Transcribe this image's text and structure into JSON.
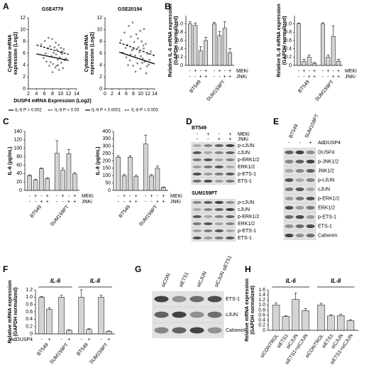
{
  "panel_labels": [
    "A",
    "B",
    "C",
    "D",
    "E",
    "F",
    "G",
    "H"
  ],
  "chart_data": [
    {
      "type": "scatter",
      "title": "GSE4779",
      "ylabel": [
        "Cytokine mRNA",
        "expression (Log2)"
      ],
      "xlabel": "DUSP4 mRNA Expression (Log2)",
      "xlim": [
        2,
        14
      ],
      "xticks": [
        2,
        4,
        6,
        8,
        10,
        12,
        14
      ],
      "ylim": [
        0,
        12
      ],
      "yticks": [
        0,
        2,
        4,
        6,
        8,
        10,
        12
      ],
      "point_color": "#8a8a8a",
      "x": [
        5.2,
        5.8,
        6.1,
        6.5,
        6.9,
        7.2,
        7.4,
        7.7,
        7.9,
        8.1,
        8.3,
        8.5,
        8.7,
        8.9,
        9.1,
        9.3,
        9.5,
        9.6,
        9.8,
        10.0,
        10.2,
        10.4,
        10.6,
        10.8,
        11.0,
        11.3,
        6.3,
        7.0,
        8.0,
        8.8,
        9.4,
        10.1,
        7.5,
        9.0,
        10.5
      ],
      "y": [
        7.5,
        5.2,
        8.1,
        4.6,
        6.8,
        3.9,
        7.2,
        5.5,
        8.4,
        4.2,
        6.1,
        7.0,
        3.6,
        5.8,
        6.6,
        4.9,
        7.4,
        3.2,
        5.3,
        6.2,
        4.4,
        5.9,
        3.5,
        6.7,
        4.8,
        5.1,
        6.0,
        8.6,
        2.8,
        7.8,
        4.0,
        6.9,
        4.5,
        3.9,
        6.3
      ],
      "lines": [
        {
          "name": "IL-6 P = 0.002",
          "x": [
            4,
            12
          ],
          "y": [
            5.9,
            4.8
          ],
          "dash": false,
          "color": "#000000"
        },
        {
          "name": "IL-8 P = 0.03",
          "x": [
            4,
            12
          ],
          "y": [
            7.4,
            5.8
          ],
          "dash": true,
          "color": "#000000"
        }
      ]
    },
    {
      "type": "scatter",
      "title": "GSE20194",
      "ylabel": [
        "Cytokine mRNA",
        "expression (Log2)"
      ],
      "xlim": [
        0,
        14
      ],
      "xticks": [
        0,
        2,
        4,
        6,
        8,
        10,
        12,
        14
      ],
      "ylim": [
        0,
        12
      ],
      "yticks": [
        0,
        2,
        4,
        6,
        8,
        10,
        12
      ],
      "point_color": "#8a8a8a",
      "x": [
        4.5,
        5.0,
        5.5,
        6.0,
        6.3,
        6.7,
        7.0,
        7.3,
        7.6,
        7.9,
        8.2,
        8.5,
        8.8,
        9.1,
        9.4,
        9.7,
        10.0,
        10.3,
        10.6,
        10.9,
        11.2,
        11.5,
        11.8,
        12.1,
        12.5,
        12.9,
        6.5,
        7.8,
        8.6,
        9.3,
        10.1,
        10.8,
        11.6,
        5.8,
        9.9,
        12.3,
        7.2,
        8.0,
        10.5,
        11.0
      ],
      "y": [
        8.2,
        6.1,
        9.5,
        5.3,
        7.4,
        10.6,
        4.8,
        8.8,
        6.5,
        3.9,
        7.9,
        5.6,
        9.2,
        4.3,
        7.0,
        6.2,
        3.4,
        8.0,
        5.1,
        6.8,
        4.6,
        7.6,
        3.8,
        5.9,
        4.9,
        6.3,
        4.0,
        11.2,
        2.9,
        8.5,
        5.5,
        7.3,
        2.6,
        6.9,
        9.8,
        4.1,
        5.8,
        6.7,
        4.4,
        10.1
      ],
      "lines": [
        {
          "name": "IL-6 P < 0.0001",
          "x": [
            4,
            14
          ],
          "y": [
            6.2,
            4.2
          ],
          "dash": false,
          "color": "#000000"
        },
        {
          "name": "IL-8 P = 0.003",
          "x": [
            4,
            14
          ],
          "y": [
            7.8,
            5.6
          ],
          "dash": true,
          "color": "#000000"
        }
      ]
    },
    {
      "type": "bar",
      "ylabel": [
        "Relative IL-6 mRNA expression",
        "(GAPDH normalized)"
      ],
      "color": "#d4d4d4",
      "ylim": [
        0,
        1.2
      ],
      "yticks": [
        0,
        0.2,
        0.4,
        0.6,
        0.8,
        {
          "value": 1,
          "label": "1.0"
        }
      ],
      "values": [
        1.0,
        0.97,
        0.35,
        0.6,
        1.0,
        0.72,
        0.9,
        0.3
      ],
      "errors": [
        0.05,
        0.05,
        0.1,
        0.08,
        0.04,
        0.1,
        0.15,
        0.1
      ],
      "conditions": [
        {
          "name": "MEKi",
          "signs": [
            "-",
            "+",
            "-",
            "+",
            "-",
            "+",
            "-",
            "+"
          ]
        },
        {
          "name": "JNKi",
          "signs": [
            "-",
            "-",
            "+",
            "+",
            "-",
            "-",
            "+",
            "+"
          ]
        }
      ],
      "groups": [
        "BT549",
        "SUM159PT"
      ]
    },
    {
      "type": "bar",
      "ylabel": [
        "Relative IL-8 mRNA expression",
        "(GAPDH normalized)"
      ],
      "color": "#d4d4d4",
      "ylim": [
        0,
        1.2
      ],
      "yticks": [
        0,
        0.2,
        0.4,
        0.6,
        0.8,
        {
          "value": 1,
          "label": "1.0"
        }
      ],
      "values": [
        1.0,
        0.1,
        0.2,
        0.05,
        1.0,
        0.2,
        0.7,
        0.1
      ],
      "errors": [
        0.02,
        0.05,
        0.05,
        0.02,
        0.03,
        0.05,
        0.25,
        0.05
      ],
      "conditions": [
        {
          "name": "MEKi",
          "signs": [
            "-",
            "+",
            "-",
            "+",
            "-",
            "+",
            "-",
            "+"
          ]
        },
        {
          "name": "JNKi",
          "signs": [
            "-",
            "-",
            "+",
            "+",
            "-",
            "-",
            "+",
            "+"
          ]
        }
      ],
      "groups": [
        "BT549",
        "SUM159PT"
      ]
    },
    {
      "type": "bar",
      "ylabel": [
        "IL-6 (pg/mL)"
      ],
      "color": "#d4d4d4",
      "ylim": [
        0,
        140
      ],
      "yticks": [
        0,
        20,
        40,
        60,
        80,
        100,
        120,
        140
      ],
      "values": [
        35,
        24,
        51,
        28,
        88,
        48,
        87,
        39
      ],
      "errors": [
        2,
        2,
        2,
        2,
        30,
        5,
        10,
        3
      ],
      "conditions": [
        {
          "name": "MEKi",
          "signs": [
            "-",
            "+",
            "-",
            "+",
            "-",
            "+",
            "-",
            "+"
          ]
        },
        {
          "name": "JNKi",
          "signs": [
            "-",
            "-",
            "+",
            "+",
            "-",
            "-",
            "+",
            "+"
          ]
        }
      ],
      "groups": [
        "BT549",
        "SUM159PT"
      ]
    },
    {
      "type": "bar",
      "ylabel": [
        "IL-8 (pg/mL)"
      ],
      "color": "#d4d4d4",
      "ylim": [
        0,
        400
      ],
      "yticks": [
        0,
        50,
        100,
        150,
        200,
        250,
        300,
        350,
        400
      ],
      "values": [
        225,
        100,
        225,
        95,
        315,
        100,
        150,
        20
      ],
      "errors": [
        10,
        8,
        10,
        8,
        60,
        8,
        15,
        3
      ],
      "conditions": [
        {
          "name": "MEKi",
          "signs": [
            "-",
            "+",
            "-",
            "+",
            "-",
            "+",
            "-",
            "+"
          ]
        },
        {
          "name": "JNKi",
          "signs": [
            "-",
            "-",
            "+",
            "+",
            "-",
            "-",
            "+",
            "+"
          ]
        }
      ],
      "groups": [
        "BT549",
        "SUM159PT"
      ]
    },
    {
      "type": "bar",
      "ylabel": [
        "Relative mRNA expression",
        "(GAPDH normalized)"
      ],
      "color": "#d4d4d4",
      "ylim": [
        0,
        1.2
      ],
      "yticks": [
        0,
        0.2,
        0.4,
        0.6,
        0.8,
        {
          "value": 1,
          "label": "1.0"
        },
        1.2
      ],
      "values": [
        1.0,
        0.67,
        1.0,
        0.1,
        1.0,
        0.12,
        1.0,
        0.07
      ],
      "errors": [
        0.02,
        0.04,
        0.05,
        0.01,
        0.2,
        0.02,
        0.05,
        0.01
      ],
      "conditions": [
        {
          "name": "AdDUSP4",
          "signs": [
            "-",
            "+",
            "-",
            "+",
            "-",
            "+",
            "-",
            "+"
          ]
        }
      ],
      "groups": [
        "BT549",
        "SUM159PT",
        "BT549",
        "SUM159PT"
      ],
      "top_groups": [
        "IL-6",
        "IL-8"
      ]
    },
    {
      "type": "bar",
      "ylabel": [
        "Relative mRNA expression",
        "(GAPDH normalized)"
      ],
      "color": "#d4d4d4",
      "ylim": [
        0,
        1.6
      ],
      "yticks": [
        0,
        0.2,
        0.4,
        0.6,
        0.8,
        {
          "value": 1,
          "label": "1.0"
        },
        1.2,
        1.4,
        1.6
      ],
      "values": [
        1.0,
        0.55,
        1.22,
        0.78,
        1.0,
        0.57,
        0.58,
        0.38
      ],
      "errors": [
        0.08,
        0.03,
        0.25,
        0.08,
        0.07,
        0.05,
        0.06,
        0.04
      ],
      "categories": [
        "siCONTROL",
        "siETS1",
        "siCJUN",
        "siETS1+siCJUN",
        "siCONTROL",
        "siETS1",
        "siCJUN",
        "siETS1+siCJUN"
      ],
      "top_groups": [
        "IL-6",
        "IL-8"
      ]
    }
  ],
  "blots": [
    {
      "title": "BT549",
      "conditions": [
        {
          "name": "MEKi",
          "signs": [
            "-",
            "+",
            "-",
            "+"
          ]
        },
        {
          "name": "JNKi",
          "signs": [
            "-",
            "-",
            "+",
            "+"
          ]
        }
      ],
      "rows": [
        "p-cJUN",
        "cJUN",
        "p-ERK1/2",
        "ERK1/2",
        "p-ETS-1",
        "ETS-1"
      ]
    },
    {
      "title": "SUM159PT",
      "rows": [
        "p-cJUN",
        "cJUN",
        "p-ERK1/2",
        "ERK1/2",
        "p-ETS-1",
        "ETS-1"
      ]
    },
    {
      "column_headers": [
        "BT549",
        "SUM159PT"
      ],
      "conditions": [
        {
          "name": "AdDUSP4",
          "signs": [
            "-",
            "-",
            "+"
          ]
        }
      ],
      "rows": [
        "DUSP4",
        "p-JNK1/2",
        "JNK1/2",
        "p-cJUN",
        "cJUN",
        "p-ERK1/2",
        "ERK1/2",
        "p-ETS-1",
        "ETS-1",
        "Calnexin"
      ]
    },
    {
      "column_headers": [
        "siCON",
        "siETS1",
        "siCJUN",
        "siCJUN siETS1"
      ],
      "rows": [
        "ETS-1",
        "cJUN",
        "Calnexin"
      ]
    }
  ]
}
